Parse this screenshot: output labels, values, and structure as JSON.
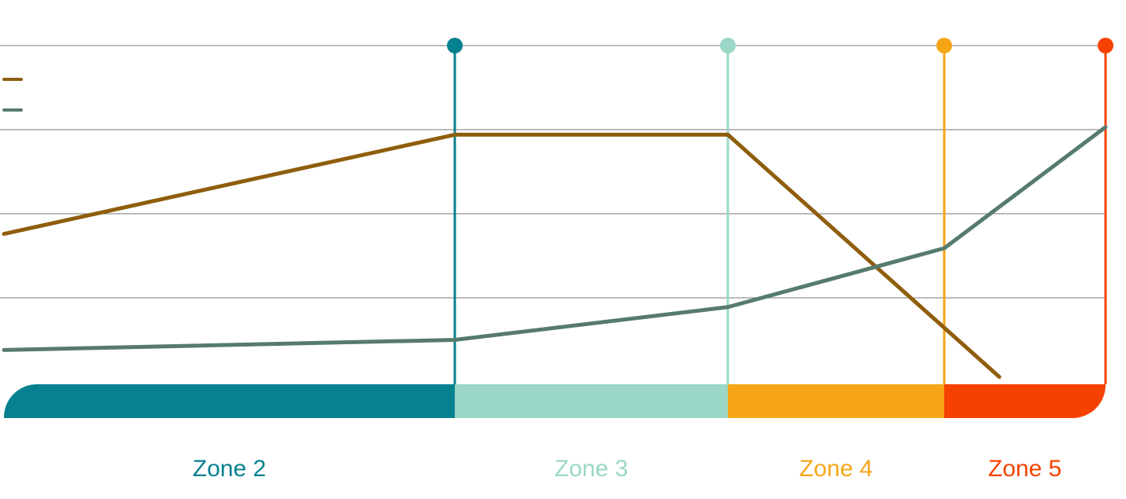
{
  "chart_data": {
    "type": "line",
    "xlim": [
      0,
      14
    ],
    "ylim": [
      0,
      4
    ],
    "yticks": [
      1,
      2,
      3,
      4
    ],
    "grid": true,
    "series": [
      {
        "color": "#8f5e0d",
        "x": [
          0,
          5.73,
          9.2,
          12.65
        ],
        "values": [
          1.76,
          2.94,
          2.94,
          0.06
        ]
      },
      {
        "color": "#567b6d",
        "x": [
          0,
          5.73,
          9.2,
          11.95,
          14
        ],
        "values": [
          0.38,
          0.5,
          0.89,
          1.59,
          3.03
        ]
      }
    ],
    "zones": [
      {
        "label": "Zone 2",
        "color": "#06818f",
        "start": 0,
        "end": 5.73
      },
      {
        "label": "Zone 3",
        "color": "#9ad7c7",
        "start": 5.73,
        "end": 9.2
      },
      {
        "label": "Zone 4",
        "color": "#f5a516",
        "start": 9.2,
        "end": 11.95
      },
      {
        "label": "Zone 5",
        "color": "#f54200",
        "start": 11.95,
        "end": 14
      }
    ]
  }
}
